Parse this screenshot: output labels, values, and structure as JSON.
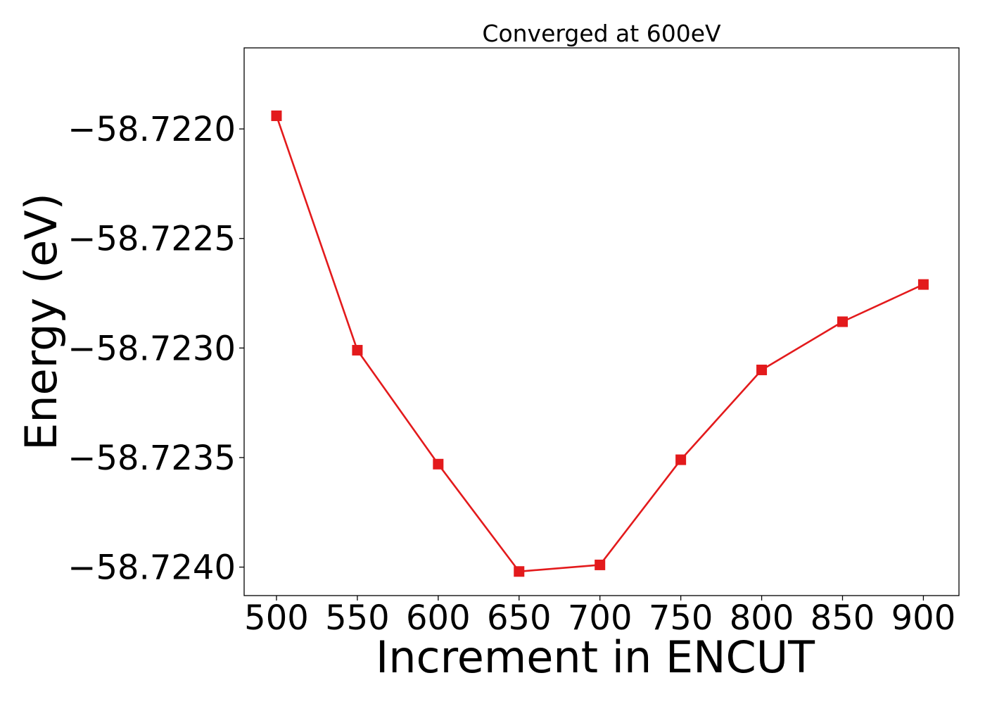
{
  "chart_data": {
    "type": "line",
    "title": "Converged at 600eV",
    "xlabel": "Increment in ENCUT",
    "ylabel": "Energy (eV)",
    "x": [
      500,
      550,
      600,
      650,
      700,
      750,
      800,
      850,
      900
    ],
    "series": [
      {
        "values": [
          -58.72194,
          -58.72301,
          -58.72353,
          -58.72402,
          -58.72399,
          -58.72351,
          -58.7231,
          -58.72288,
          -58.72271
        ],
        "color": "#e31a1c",
        "marker": "square"
      }
    ],
    "xticks": [
      500,
      550,
      600,
      650,
      700,
      750,
      800,
      850,
      900
    ],
    "xtick_labels": [
      "500",
      "550",
      "600",
      "650",
      "700",
      "750",
      "800",
      "850",
      "900"
    ],
    "yticks": [
      -58.722,
      -58.7225,
      -58.723,
      -58.7235,
      -58.724
    ],
    "ytick_labels": [
      "−58.7220",
      "−58.7225",
      "−58.7230",
      "−58.7235",
      "−58.7240"
    ],
    "xlim": [
      480,
      922
    ],
    "ylim": [
      -58.72413,
      -58.72163
    ],
    "grid": false,
    "legend": "none"
  }
}
